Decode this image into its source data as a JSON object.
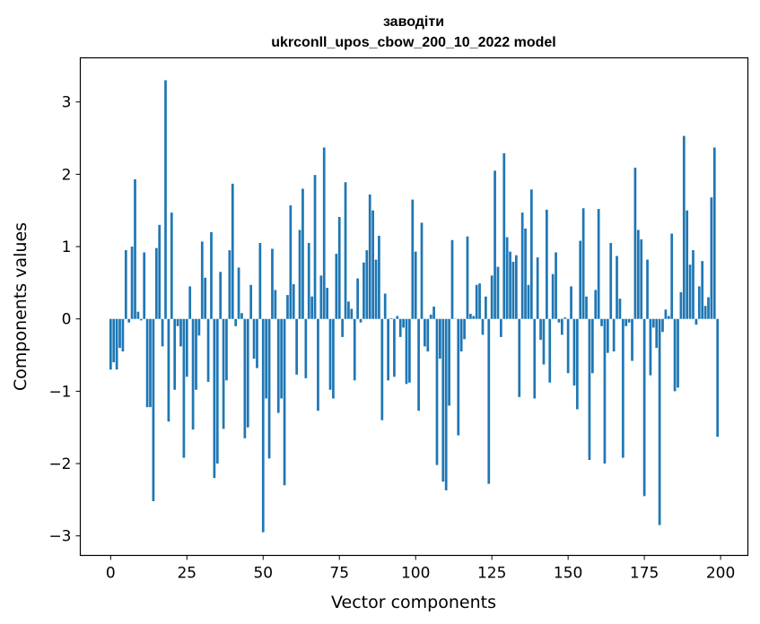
{
  "chart_data": {
    "type": "bar",
    "title_line1": "заводіти",
    "title_line2": "ukrconll_upos_cbow_200_10_2022 model",
    "xlabel": "Vector components",
    "ylabel": "Components values",
    "xlim": [
      -9.95,
      208.95
    ],
    "ylim": [
      -3.27,
      3.61
    ],
    "xticks": [
      0,
      25,
      50,
      75,
      100,
      125,
      150,
      175,
      200
    ],
    "yticks": [
      -3,
      -2,
      -1,
      0,
      1,
      2,
      3
    ],
    "xtick_labels": [
      "0",
      "25",
      "50",
      "75",
      "100",
      "125",
      "150",
      "175",
      "200"
    ],
    "ytick_labels": [
      "−3",
      "−2",
      "−1",
      "0",
      "1",
      "2",
      "3"
    ],
    "bar_color": "#1f77b4",
    "grid": false,
    "values": [
      -0.7,
      -0.6,
      -0.7,
      -0.4,
      -0.45,
      0.95,
      -0.05,
      1.0,
      1.93,
      0.1,
      -0.02,
      0.92,
      -1.22,
      -1.22,
      -2.52,
      0.98,
      1.3,
      -0.38,
      3.3,
      -1.42,
      1.47,
      -0.98,
      -0.1,
      -0.38,
      -1.92,
      -0.8,
      0.45,
      -1.53,
      -0.98,
      -0.23,
      1.07,
      0.57,
      -0.87,
      1.2,
      -2.2,
      -2.0,
      0.65,
      -1.52,
      -0.85,
      0.95,
      1.87,
      -0.1,
      0.71,
      0.08,
      -1.65,
      -1.5,
      0.47,
      -0.55,
      -0.68,
      1.05,
      -2.95,
      -1.1,
      -1.93,
      0.97,
      0.4,
      -1.3,
      -1.1,
      -2.3,
      0.33,
      1.57,
      0.48,
      -0.77,
      1.23,
      1.8,
      -0.82,
      1.05,
      0.31,
      1.99,
      -1.27,
      0.6,
      2.37,
      0.43,
      -0.98,
      -1.1,
      0.9,
      1.41,
      -0.25,
      1.89,
      0.24,
      0.14,
      -0.85,
      0.56,
      -0.05,
      0.78,
      0.95,
      1.72,
      1.5,
      0.82,
      1.15,
      -1.4,
      0.35,
      -0.85,
      0.01,
      -0.8,
      0.04,
      -0.25,
      -0.12,
      -0.9,
      -0.88,
      1.65,
      0.93,
      -1.27,
      1.33,
      -0.38,
      -0.45,
      0.06,
      0.17,
      -2.02,
      -0.55,
      -2.25,
      -2.37,
      -1.2,
      1.09,
      0.0,
      -1.61,
      -0.45,
      -0.28,
      1.14,
      0.07,
      0.04,
      0.47,
      0.49,
      -0.22,
      0.31,
      -2.28,
      0.6,
      2.05,
      0.72,
      -0.25,
      2.29,
      1.13,
      0.93,
      0.79,
      0.88,
      -1.08,
      1.47,
      1.25,
      0.47,
      1.79,
      -1.1,
      0.85,
      -0.29,
      -0.63,
      1.51,
      -0.88,
      0.62,
      0.92,
      -0.05,
      -0.22,
      0.02,
      -0.75,
      0.45,
      -0.92,
      -1.25,
      1.08,
      1.53,
      0.31,
      -1.95,
      -0.75,
      0.4,
      1.52,
      -0.1,
      -2.0,
      -0.47,
      1.05,
      -0.45,
      0.87,
      0.28,
      -1.92,
      -0.1,
      -0.05,
      -0.58,
      2.09,
      1.23,
      1.1,
      -2.45,
      0.82,
      -0.78,
      -0.12,
      -0.4,
      -2.85,
      -0.18,
      0.13,
      0.04,
      1.18,
      -1.0,
      -0.95,
      0.37,
      2.53,
      1.5,
      0.75,
      0.95,
      -0.08,
      0.45,
      0.8,
      0.18,
      0.3,
      1.68,
      2.37,
      -1.63
    ]
  }
}
